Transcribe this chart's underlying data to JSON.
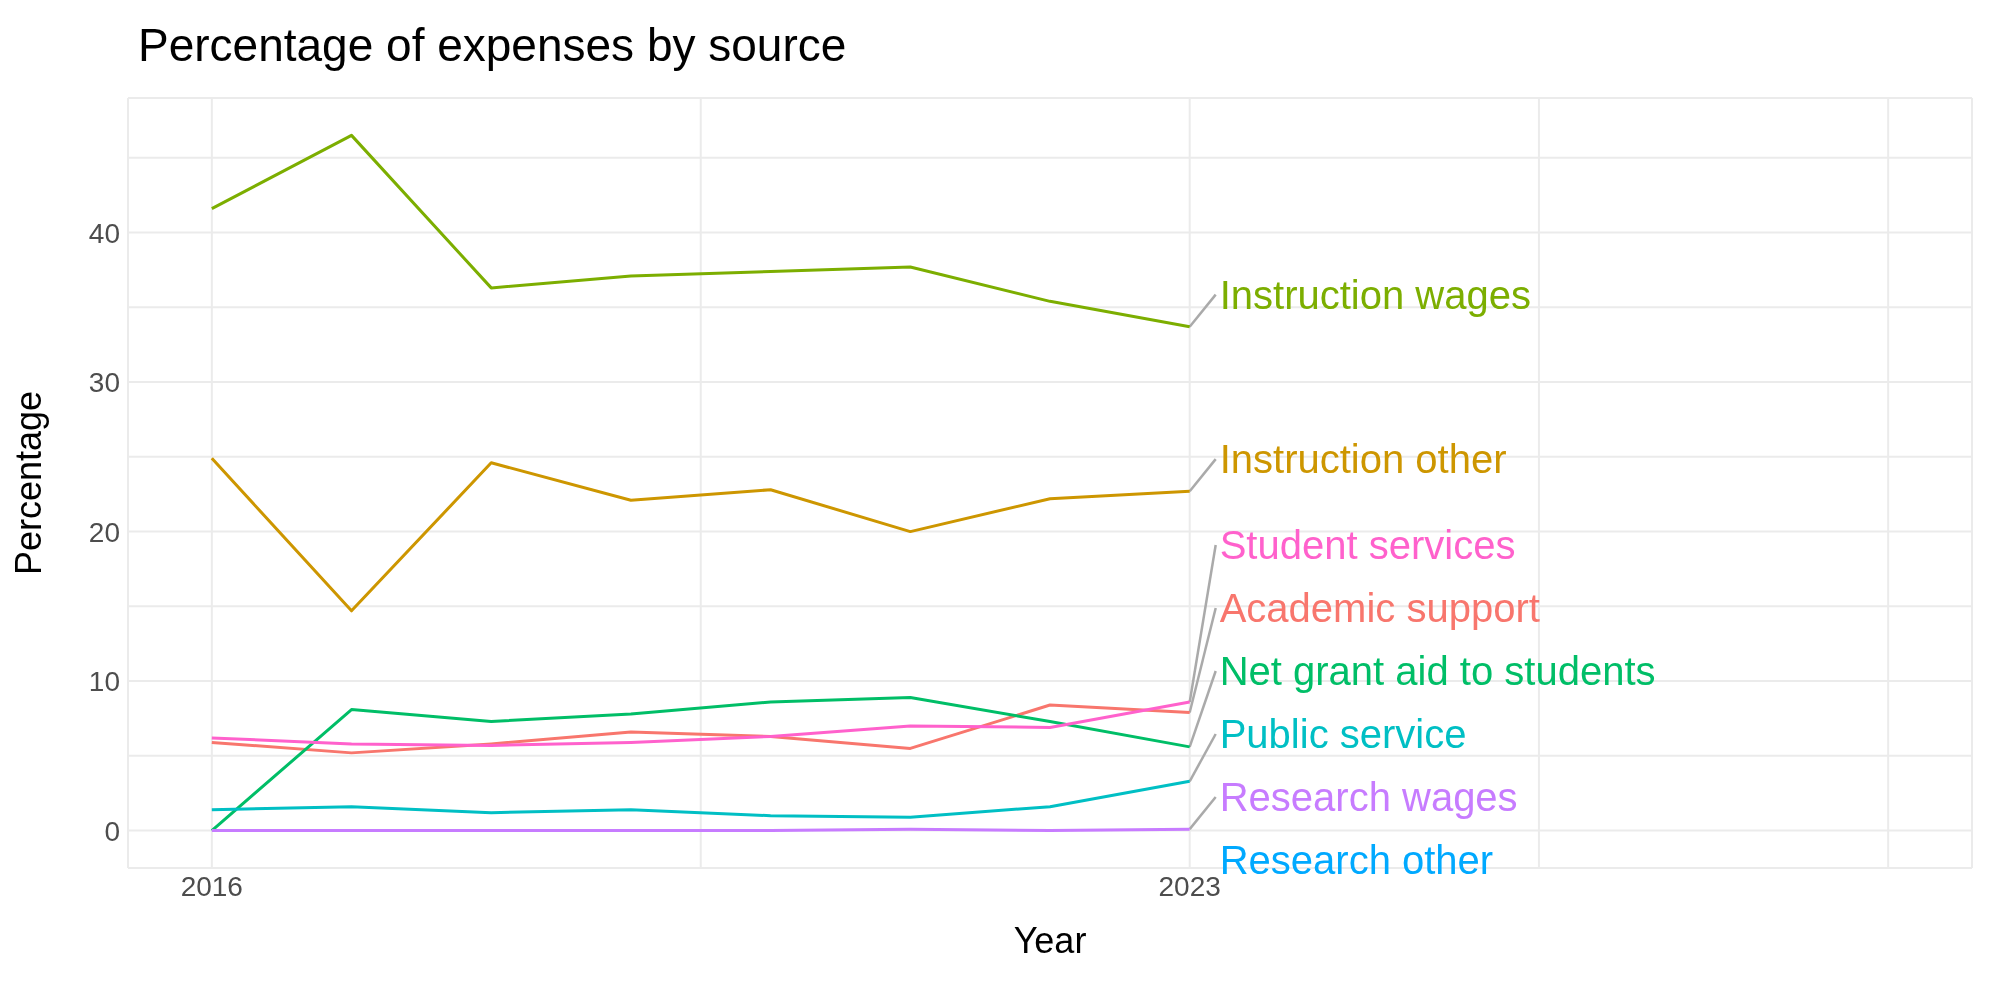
{
  "chart_data": {
    "type": "line",
    "title": "Percentage of expenses by source",
    "xlabel": "Year",
    "ylabel": "Percentage",
    "x": [
      2016,
      2017,
      2018,
      2019,
      2020,
      2021,
      2022,
      2023
    ],
    "xlim": [
      2015.4,
      2028.6
    ],
    "xticks": [
      2016,
      {
        "value": 2019.5,
        "label": null
      },
      2023,
      {
        "value": 2025.5,
        "label": null
      },
      {
        "value": 2028,
        "label": null
      }
    ],
    "ylim": [
      -2.5,
      49
    ],
    "yticks": [
      0,
      {
        "value": 5,
        "label": null
      },
      10,
      {
        "value": 15,
        "label": null
      },
      20,
      {
        "value": 25,
        "label": null
      },
      30,
      {
        "value": 35,
        "label": null
      },
      40,
      {
        "value": 45,
        "label": null
      }
    ],
    "grid": true,
    "series": [
      {
        "name": "Academic support",
        "color": "#f8766d",
        "values": [
          5.9,
          5.2,
          5.8,
          6.6,
          6.3,
          5.5,
          8.4,
          7.9
        ]
      },
      {
        "name": "Instruction other",
        "color": "#cd9600",
        "values": [
          24.9,
          14.7,
          24.6,
          22.1,
          22.8,
          20.0,
          22.2,
          22.7
        ]
      },
      {
        "name": "Instruction wages",
        "color": "#7cae00",
        "values": [
          41.6,
          46.5,
          36.3,
          37.1,
          37.4,
          37.7,
          35.4,
          33.7
        ]
      },
      {
        "name": "Net grant aid to students",
        "color": "#00be67",
        "values": [
          0.0,
          8.1,
          7.3,
          7.8,
          8.6,
          8.9,
          7.3,
          5.6
        ]
      },
      {
        "name": "Public service",
        "color": "#00bfc4",
        "values": [
          1.4,
          1.6,
          1.2,
          1.4,
          1.0,
          0.9,
          1.6,
          3.3
        ]
      },
      {
        "name": "Research other",
        "color": "#00a9ff",
        "values": [
          null,
          null,
          null,
          null,
          null,
          null,
          null,
          null
        ]
      },
      {
        "name": "Research wages",
        "color": "#c77cff",
        "values": [
          0.0,
          0.0,
          0.0,
          0.0,
          0.0,
          0.1,
          0.0,
          0.1
        ]
      },
      {
        "name": "Student services",
        "color": "#ff61cc",
        "values": [
          6.2,
          5.8,
          5.7,
          5.9,
          6.3,
          7.0,
          6.9,
          8.6
        ]
      }
    ]
  }
}
